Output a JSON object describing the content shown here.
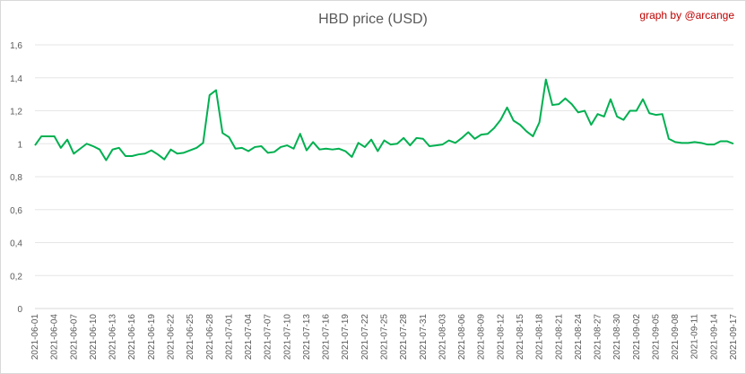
{
  "title": "HBD price (USD)",
  "credit": "graph by @arcange",
  "chart_data": {
    "type": "line",
    "title": "HBD price (USD)",
    "xlabel": "",
    "ylabel": "",
    "ylim": [
      0,
      1.6
    ],
    "y_ticks": [
      "0",
      "0,2",
      "0,4",
      "0,6",
      "0,8",
      "1",
      "1,2",
      "1,4",
      "1,6"
    ],
    "grid": true,
    "legend": "none",
    "line_color": "#00b050",
    "x_tick_labels": [
      "2021-06-01",
      "2021-06-04",
      "2021-06-07",
      "2021-06-10",
      "2021-06-13",
      "2021-06-16",
      "2021-06-19",
      "2021-06-22",
      "2021-06-25",
      "2021-06-28",
      "2021-07-01",
      "2021-07-04",
      "2021-07-07",
      "2021-07-10",
      "2021-07-13",
      "2021-07-16",
      "2021-07-19",
      "2021-07-22",
      "2021-07-25",
      "2021-07-28",
      "2021-07-31",
      "2021-08-03",
      "2021-08-06",
      "2021-08-09",
      "2021-08-12",
      "2021-08-15",
      "2021-08-18",
      "2021-08-21",
      "2021-08-24",
      "2021-08-27",
      "2021-08-30",
      "2021-09-02",
      "2021-09-05",
      "2021-09-08",
      "2021-09-11",
      "2021-09-14",
      "2021-09-17"
    ],
    "x_start": "2021-06-01",
    "x_end": "2021-09-17",
    "values": [
      0.99,
      1.045,
      1.045,
      1.045,
      0.975,
      1.025,
      0.94,
      0.97,
      1.0,
      0.985,
      0.965,
      0.9,
      0.965,
      0.975,
      0.925,
      0.925,
      0.935,
      0.94,
      0.96,
      0.935,
      0.905,
      0.965,
      0.94,
      0.945,
      0.96,
      0.975,
      1.005,
      1.295,
      1.325,
      1.065,
      1.04,
      0.97,
      0.975,
      0.955,
      0.98,
      0.985,
      0.945,
      0.95,
      0.98,
      0.99,
      0.97,
      1.06,
      0.96,
      1.01,
      0.965,
      0.97,
      0.965,
      0.97,
      0.955,
      0.92,
      1.005,
      0.98,
      1.025,
      0.955,
      1.02,
      0.995,
      1.0,
      1.035,
      0.99,
      1.035,
      1.03,
      0.985,
      0.99,
      0.995,
      1.02,
      1.005,
      1.035,
      1.07,
      1.03,
      1.055,
      1.06,
      1.095,
      1.145,
      1.22,
      1.14,
      1.115,
      1.075,
      1.045,
      1.13,
      1.39,
      1.235,
      1.24,
      1.275,
      1.24,
      1.19,
      1.2,
      1.115,
      1.18,
      1.165,
      1.27,
      1.165,
      1.145,
      1.2,
      1.2,
      1.27,
      1.185,
      1.175,
      1.18,
      1.03,
      1.01,
      1.005,
      1.005,
      1.01,
      1.005,
      0.995,
      0.995,
      1.015,
      1.015,
      1.0
    ]
  }
}
